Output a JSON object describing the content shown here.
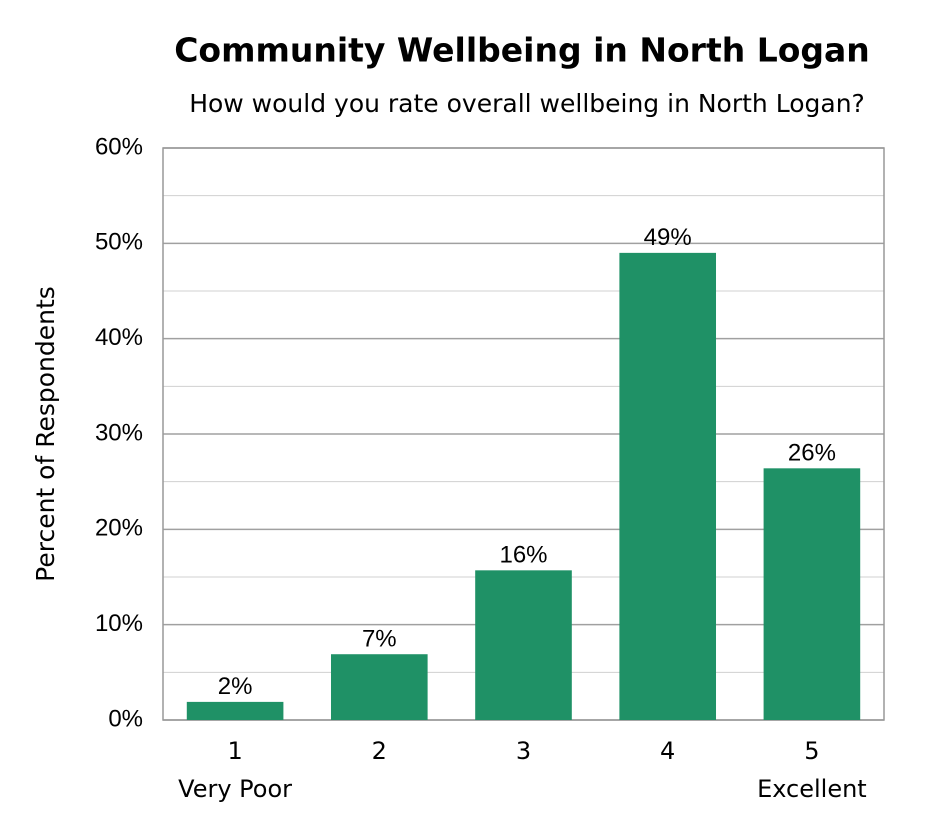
{
  "chart_data": {
    "type": "bar",
    "title": "Community Wellbeing in North Logan",
    "subtitle": "How would you rate overall wellbeing in North Logan?",
    "y_label": "Percent of Respondents",
    "categories": [
      "1",
      "2",
      "3",
      "4",
      "5"
    ],
    "category_sublabels": [
      "Very Poor",
      null,
      null,
      null,
      "Excellent"
    ],
    "values": [
      1.9,
      6.9,
      15.7,
      49,
      26.4
    ],
    "value_labels": [
      "2%",
      "7%",
      "16%",
      "49%",
      "26%"
    ],
    "color": "#1f9166",
    "ylim": [
      0,
      60
    ],
    "yticks": [
      {
        "value": 0,
        "label": "0%"
      },
      {
        "value": 10,
        "label": "10%"
      },
      {
        "value": 20,
        "label": "20%"
      },
      {
        "value": 30,
        "label": "30%"
      },
      {
        "value": 40,
        "label": "40%"
      },
      {
        "value": 50,
        "label": "50%"
      },
      {
        "value": 60,
        "label": "60%"
      }
    ],
    "yminorticks": [
      5,
      15,
      25,
      35,
      45,
      55
    ],
    "grid": true
  }
}
